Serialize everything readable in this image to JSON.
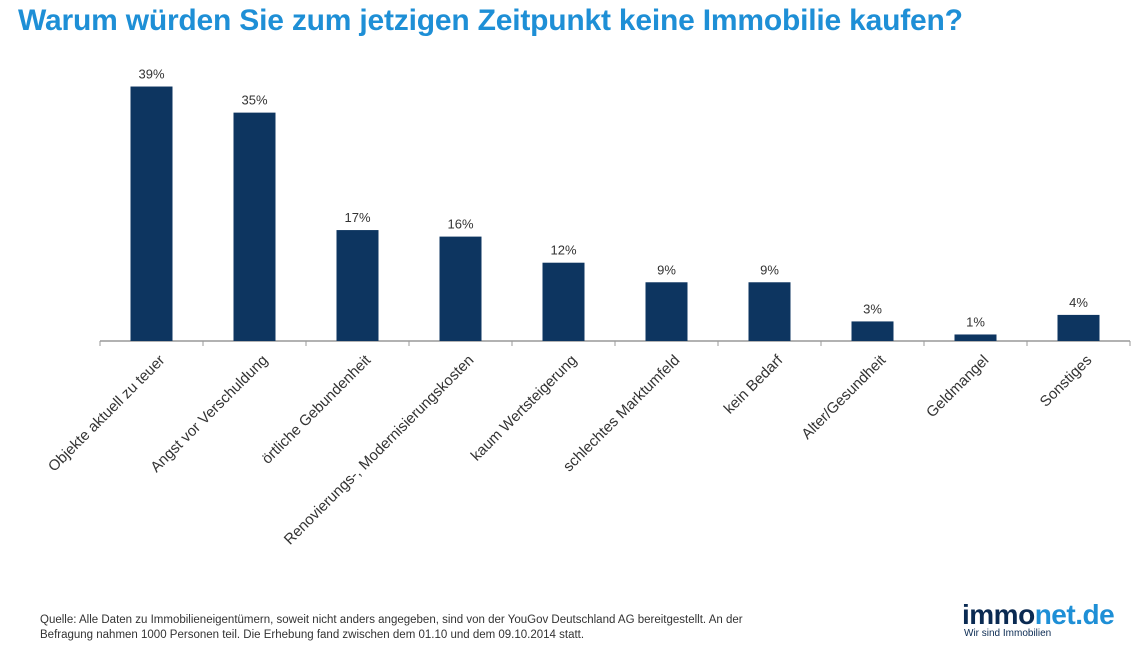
{
  "colors": {
    "bar": "#0d3560",
    "title": "#1e8fd6",
    "axis": "#999999",
    "text": "#333333"
  },
  "chart_data": {
    "type": "bar",
    "title": "Warum würden Sie zum jetzigen Zeitpunkt keine Immobilie kaufen?",
    "categories": [
      "Objekte aktuell zu teuer",
      "Angst vor Verschuldung",
      "örtliche Gebundenheit",
      "Renovierungs-, Modernisierungskosten",
      "kaum Wertsteigerung",
      "schlechtes Marktumfeld",
      "kein Bedarf",
      "Alter/Gesundheit",
      "Geldmangel",
      "Sonstiges"
    ],
    "values": [
      39,
      35,
      17,
      16,
      12,
      9,
      9,
      3,
      1,
      4
    ],
    "value_labels": [
      "39%",
      "35%",
      "17%",
      "16%",
      "12%",
      "9%",
      "9%",
      "3%",
      "1%",
      "4%"
    ],
    "ylim": [
      0,
      40
    ],
    "grid": false,
    "xlabel": "",
    "ylabel": ""
  },
  "footer": {
    "source_line1": "Quelle: Alle Daten zu Immobilieneigentümern, soweit nicht anders angegeben, sind von der YouGov Deutschland AG bereitgestellt. An der",
    "source_line2": "Befragung nahmen 1000 Personen teil. Die Erhebung fand zwischen dem 01.10 und dem 09.10.2014 statt."
  },
  "logo": {
    "part1": "immo",
    "part2": "net.de",
    "tagline": "Wir sind Immobilien"
  }
}
